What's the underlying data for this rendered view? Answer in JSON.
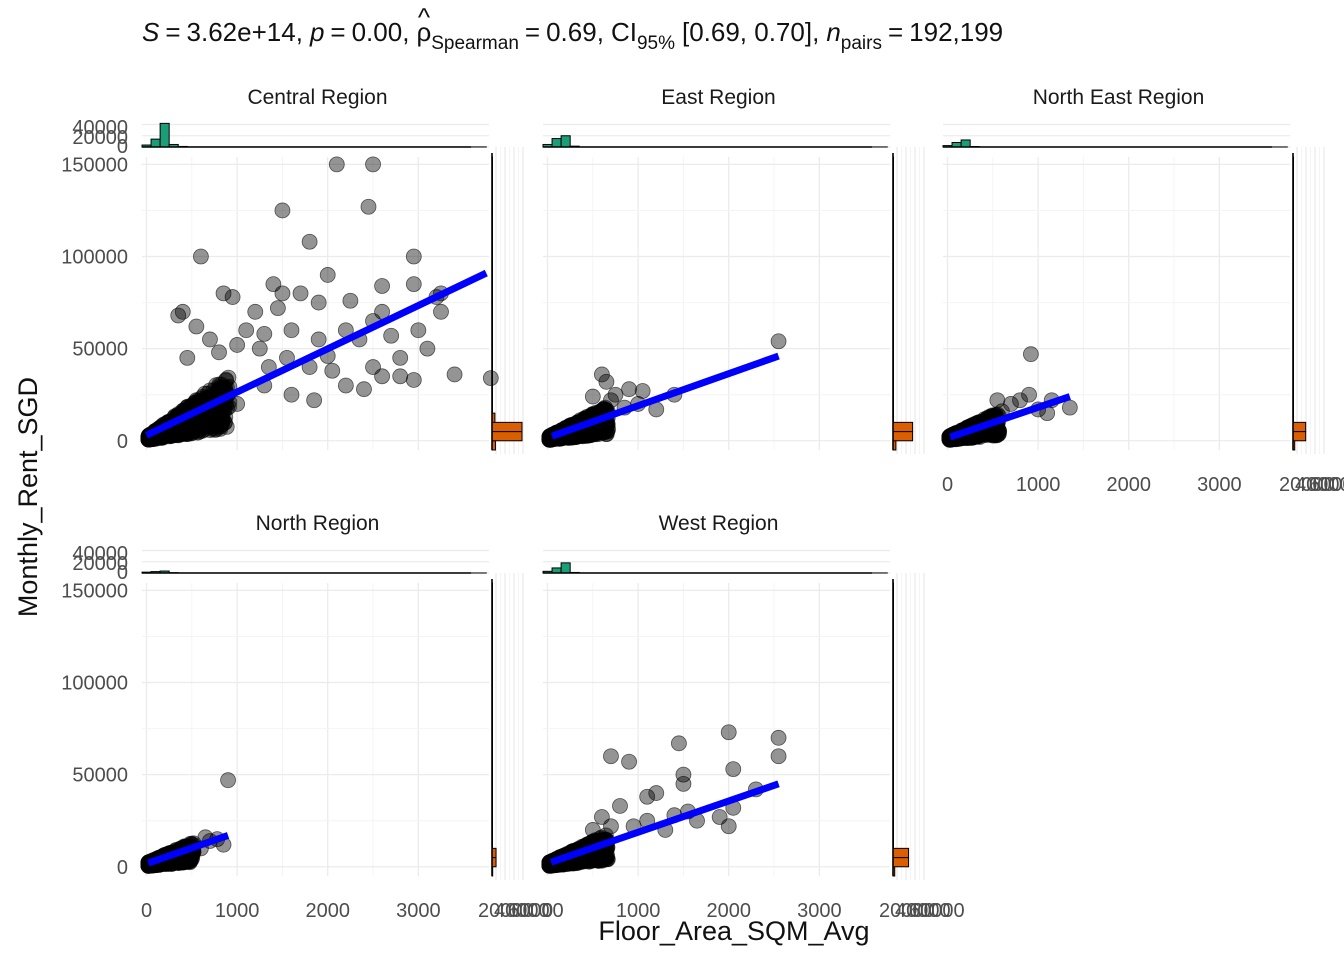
{
  "chart_data": {
    "type": "scatter",
    "title": {
      "S_symbol": "S",
      "S_value": "3.62e+14",
      "p_symbol": "p",
      "p_value": "0.00",
      "rho_symbol": "ρ",
      "rho_hat": "^",
      "rho_subscript": "Spearman",
      "rho_value": "0.69",
      "ci_symbol": "CI",
      "ci_subscript": "95%",
      "ci_value": "[0.69, 0.70]",
      "n_symbol": "n",
      "n_subscript": "pairs",
      "n_value": "192,199",
      "equals": "=",
      "comma": ","
    },
    "xlabel": "Floor_Area_SQM_Avg",
    "ylabel": "Monthly_Rent_SGD",
    "x_ticks": [
      "0",
      "1000",
      "2000",
      "3000"
    ],
    "y_ticks": [
      "0",
      "50000",
      "100000",
      "150000"
    ],
    "x_ticks_values": [
      0,
      1000,
      2000,
      3000
    ],
    "y_ticks_values": [
      0,
      50000,
      100000,
      150000
    ],
    "xlim": [
      -50,
      3780
    ],
    "ylim": [
      -5000,
      154000
    ],
    "top_hist_ticks": [
      "0",
      "20000",
      "40000"
    ],
    "right_hist_ticks": [
      "20000",
      "40000",
      "60000"
    ],
    "colors": {
      "points": "#000000",
      "regression": "#0000ff",
      "top_hist_fill": "#1b9e77",
      "right_hist_fill": "#d95f02"
    },
    "panels": [
      {
        "name": "Central Region",
        "fit": {
          "x0": 0,
          "y0": 3000,
          "x1": 3750,
          "y1": 91000
        },
        "dense_cluster": {
          "x_max": 900,
          "y_max": 30000
        },
        "outliers": [
          [
            2100,
            150000
          ],
          [
            2500,
            150000
          ],
          [
            1500,
            125000
          ],
          [
            2450,
            127000
          ],
          [
            1800,
            108000
          ],
          [
            600,
            100000
          ],
          [
            2950,
            100000
          ],
          [
            2000,
            90000
          ],
          [
            2950,
            85000
          ],
          [
            1400,
            85000
          ],
          [
            1500,
            80000
          ],
          [
            1700,
            80000
          ],
          [
            3250,
            80000
          ],
          [
            2600,
            84000
          ],
          [
            850,
            80000
          ],
          [
            950,
            78000
          ],
          [
            2250,
            76000
          ],
          [
            1900,
            75000
          ],
          [
            2600,
            70000
          ],
          [
            3250,
            70000
          ],
          [
            3200,
            78000
          ],
          [
            400,
            70000
          ],
          [
            1200,
            70000
          ],
          [
            1450,
            72000
          ],
          [
            2500,
            65000
          ],
          [
            3000,
            60000
          ],
          [
            2700,
            57000
          ],
          [
            3100,
            50000
          ],
          [
            1900,
            55000
          ],
          [
            1600,
            60000
          ],
          [
            2350,
            55000
          ],
          [
            1300,
            58000
          ],
          [
            1100,
            60000
          ],
          [
            2200,
            60000
          ],
          [
            2800,
            45000
          ],
          [
            2500,
            40000
          ],
          [
            3800,
            34000
          ],
          [
            3400,
            36000
          ],
          [
            2600,
            35000
          ],
          [
            2050,
            38000
          ],
          [
            1550,
            45000
          ],
          [
            1800,
            40000
          ],
          [
            2200,
            30000
          ],
          [
            2950,
            33000
          ],
          [
            1250,
            50000
          ],
          [
            700,
            55000
          ],
          [
            550,
            62000
          ],
          [
            350,
            68000
          ],
          [
            1000,
            52000
          ],
          [
            1600,
            25000
          ],
          [
            2400,
            28000
          ],
          [
            1000,
            20000
          ],
          [
            1300,
            30000
          ],
          [
            800,
            48000
          ],
          [
            450,
            45000
          ],
          [
            2000,
            46000
          ],
          [
            1350,
            40000
          ],
          [
            1850,
            22000
          ],
          [
            2800,
            35000
          ]
        ],
        "top_hist": [
          {
            "x0": -50,
            "x1": 50,
            "count": 3500
          },
          {
            "x0": 50,
            "x1": 150,
            "count": 14000
          },
          {
            "x0": 150,
            "x1": 250,
            "count": 42000
          },
          {
            "x0": 250,
            "x1": 350,
            "count": 4500
          },
          {
            "x0": 350,
            "x1": 450,
            "count": 1000
          },
          {
            "x0": 450,
            "x1": 3750,
            "count": 150
          }
        ],
        "right_hist": [
          {
            "y0": -5000,
            "y1": 0,
            "count": 3000
          },
          {
            "y0": 0,
            "y1": 5000,
            "count": 26000
          },
          {
            "y0": 5000,
            "y1": 10000,
            "count": 26000
          },
          {
            "y0": 10000,
            "y1": 15000,
            "count": 2500
          },
          {
            "y0": 15000,
            "y1": 154000,
            "count": 200
          }
        ]
      },
      {
        "name": "East Region",
        "fit": {
          "x0": 50,
          "y0": 2500,
          "x1": 2550,
          "y1": 46000
        },
        "dense_cluster": {
          "x_max": 650,
          "y_max": 15000
        },
        "outliers": [
          [
            2550,
            54000
          ],
          [
            600,
            36000
          ],
          [
            650,
            32000
          ],
          [
            1200,
            17000
          ],
          [
            1400,
            25000
          ],
          [
            900,
            28000
          ],
          [
            750,
            25000
          ],
          [
            1050,
            27000
          ],
          [
            500,
            24000
          ],
          [
            850,
            18000
          ],
          [
            1000,
            20000
          ],
          [
            700,
            22000
          ]
        ],
        "top_hist": [
          {
            "x0": -50,
            "x1": 50,
            "count": 4500
          },
          {
            "x0": 50,
            "x1": 150,
            "count": 15000
          },
          {
            "x0": 150,
            "x1": 250,
            "count": 20000
          },
          {
            "x0": 250,
            "x1": 350,
            "count": 1500
          },
          {
            "x0": 350,
            "x1": 3750,
            "count": 100
          }
        ],
        "right_hist": [
          {
            "y0": -5000,
            "y1": 0,
            "count": 2500
          },
          {
            "y0": 0,
            "y1": 5000,
            "count": 17000
          },
          {
            "y0": 5000,
            "y1": 10000,
            "count": 17000
          },
          {
            "y0": 10000,
            "y1": 154000,
            "count": 200
          }
        ]
      },
      {
        "name": "North East Region",
        "fit": {
          "x0": 30,
          "y0": 2000,
          "x1": 1350,
          "y1": 24000
        },
        "dense_cluster": {
          "x_max": 550,
          "y_max": 12000
        },
        "outliers": [
          [
            920,
            47000
          ],
          [
            1350,
            18000
          ],
          [
            1150,
            22000
          ],
          [
            1000,
            17000
          ],
          [
            900,
            25000
          ],
          [
            800,
            22000
          ],
          [
            700,
            20000
          ],
          [
            600,
            16000
          ],
          [
            550,
            22000
          ],
          [
            1100,
            15000
          ]
        ],
        "top_hist": [
          {
            "x0": -50,
            "x1": 50,
            "count": 2500
          },
          {
            "x0": 50,
            "x1": 150,
            "count": 8000
          },
          {
            "x0": 150,
            "x1": 250,
            "count": 12500
          },
          {
            "x0": 250,
            "x1": 350,
            "count": 800
          },
          {
            "x0": 350,
            "x1": 3750,
            "count": 80
          }
        ],
        "right_hist": [
          {
            "y0": -5000,
            "y1": 0,
            "count": 1500
          },
          {
            "y0": 0,
            "y1": 5000,
            "count": 11000
          },
          {
            "y0": 5000,
            "y1": 10000,
            "count": 11000
          },
          {
            "y0": 10000,
            "y1": 154000,
            "count": 100
          }
        ]
      },
      {
        "name": "North Region",
        "fit": {
          "x0": 20,
          "y0": 2000,
          "x1": 900,
          "y1": 17000
        },
        "dense_cluster": {
          "x_max": 500,
          "y_max": 10000
        },
        "outliers": [
          [
            900,
            47000
          ],
          [
            850,
            12000
          ],
          [
            780,
            15000
          ],
          [
            700,
            14000
          ],
          [
            650,
            16000
          ],
          [
            600,
            10000
          ]
        ],
        "top_hist": [
          {
            "x0": -50,
            "x1": 50,
            "count": 1500
          },
          {
            "x0": 50,
            "x1": 150,
            "count": 2500
          },
          {
            "x0": 150,
            "x1": 250,
            "count": 3500
          },
          {
            "x0": 250,
            "x1": 350,
            "count": 600
          },
          {
            "x0": 350,
            "x1": 3750,
            "count": 50
          }
        ],
        "right_hist": [
          {
            "y0": -5000,
            "y1": 0,
            "count": 600
          },
          {
            "y0": 0,
            "y1": 5000,
            "count": 3500
          },
          {
            "y0": 5000,
            "y1": 10000,
            "count": 3500
          },
          {
            "y0": 10000,
            "y1": 154000,
            "count": 80
          }
        ]
      },
      {
        "name": "West Region",
        "fit": {
          "x0": 40,
          "y0": 2500,
          "x1": 2550,
          "y1": 45000
        },
        "dense_cluster": {
          "x_max": 650,
          "y_max": 14000
        },
        "outliers": [
          [
            2000,
            73000
          ],
          [
            2550,
            70000
          ],
          [
            1450,
            67000
          ],
          [
            2550,
            60000
          ],
          [
            700,
            60000
          ],
          [
            900,
            57000
          ],
          [
            2050,
            53000
          ],
          [
            1500,
            50000
          ],
          [
            1500,
            45000
          ],
          [
            2300,
            42000
          ],
          [
            1200,
            40000
          ],
          [
            1100,
            38000
          ],
          [
            2050,
            32000
          ],
          [
            1550,
            30000
          ],
          [
            2000,
            22000
          ],
          [
            1900,
            27000
          ],
          [
            1400,
            28000
          ],
          [
            1100,
            25000
          ],
          [
            800,
            33000
          ],
          [
            600,
            27000
          ],
          [
            1300,
            20000
          ],
          [
            950,
            22000
          ],
          [
            500,
            20000
          ],
          [
            1650,
            25000
          ],
          [
            700,
            22000
          ]
        ],
        "top_hist": [
          {
            "x0": -50,
            "x1": 50,
            "count": 3000
          },
          {
            "x0": 50,
            "x1": 150,
            "count": 9000
          },
          {
            "x0": 150,
            "x1": 250,
            "count": 18000
          },
          {
            "x0": 250,
            "x1": 350,
            "count": 1000
          },
          {
            "x0": 350,
            "x1": 3750,
            "count": 100
          }
        ],
        "right_hist": [
          {
            "y0": -5000,
            "y1": 0,
            "count": 1500
          },
          {
            "y0": 0,
            "y1": 5000,
            "count": 13500
          },
          {
            "y0": 5000,
            "y1": 10000,
            "count": 13500
          },
          {
            "y0": 10000,
            "y1": 154000,
            "count": 150
          }
        ]
      }
    ]
  }
}
